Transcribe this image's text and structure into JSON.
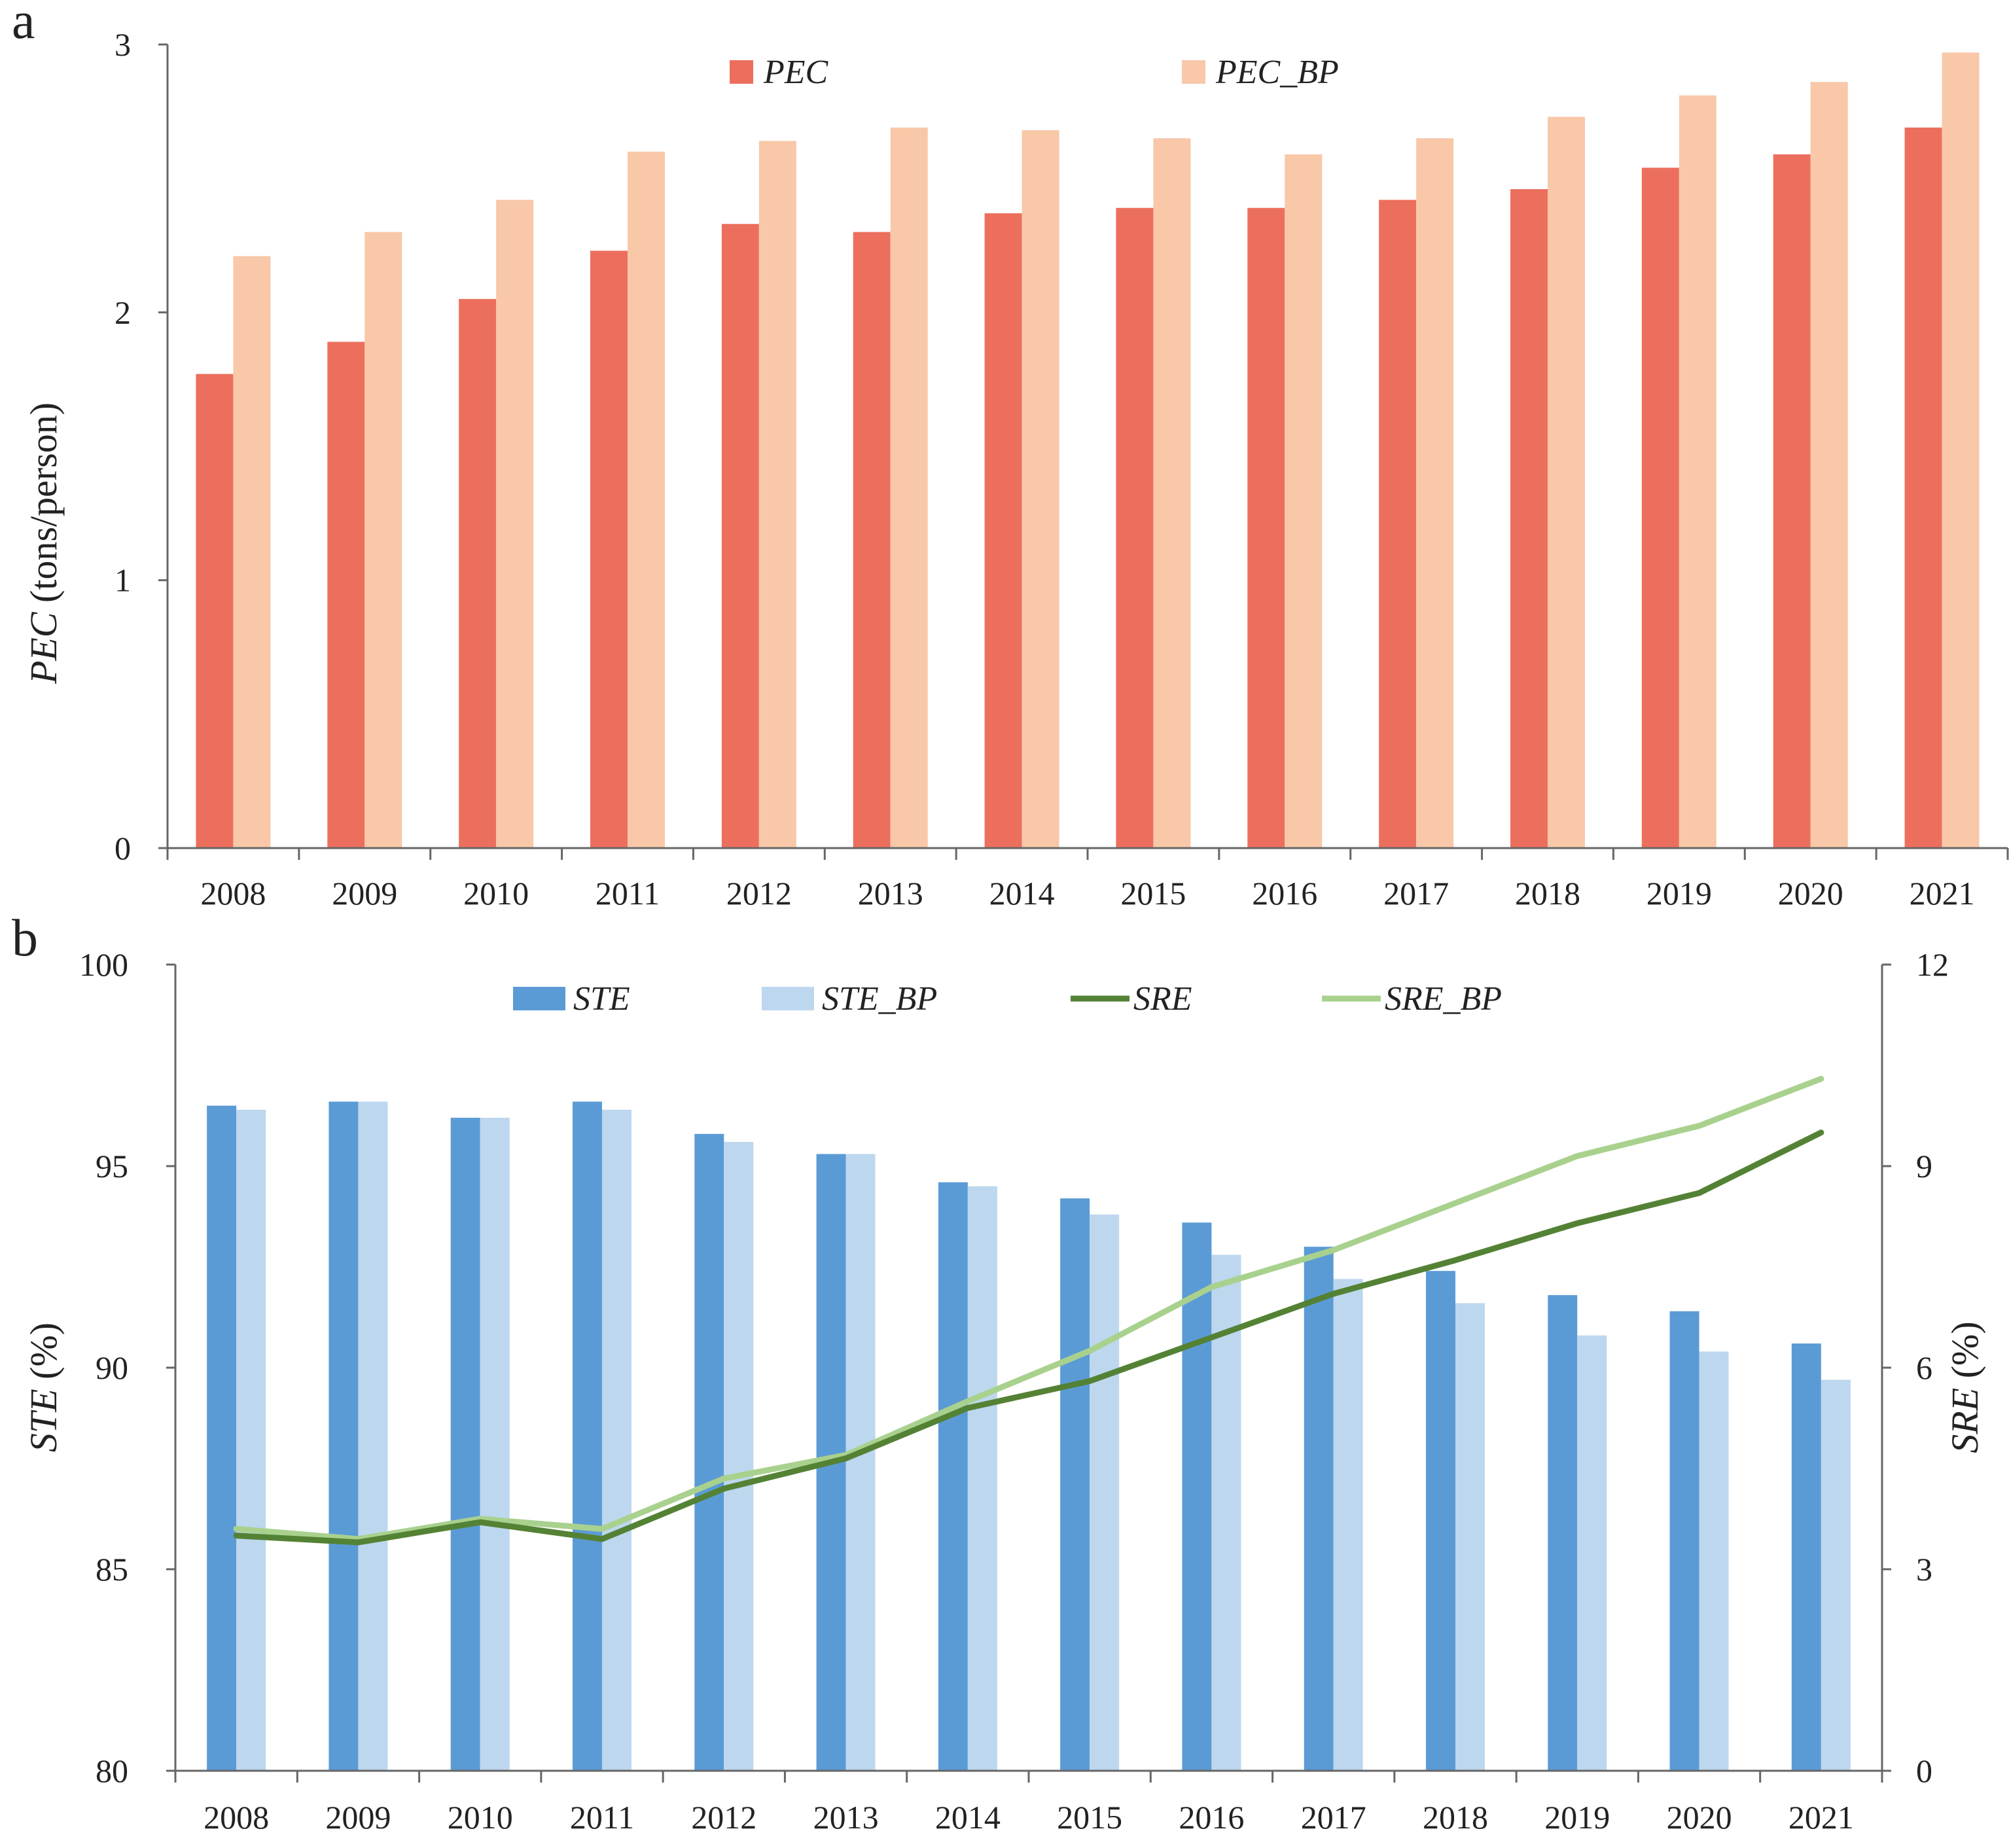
{
  "chart_data": [
    {
      "panel": "a",
      "type": "bar",
      "categories": [
        "2008",
        "2009",
        "2010",
        "2011",
        "2012",
        "2013",
        "2014",
        "2015",
        "2016",
        "2017",
        "2018",
        "2019",
        "2020",
        "2021"
      ],
      "series": [
        {
          "name": "PEC",
          "color": "#ec6f5e",
          "values": [
            1.77,
            1.89,
            2.05,
            2.23,
            2.33,
            2.3,
            2.37,
            2.39,
            2.39,
            2.42,
            2.46,
            2.54,
            2.59,
            2.69
          ]
        },
        {
          "name": "PEC_BP",
          "color": "#f8c8a9",
          "values": [
            2.21,
            2.3,
            2.42,
            2.6,
            2.64,
            2.69,
            2.68,
            2.65,
            2.59,
            2.65,
            2.73,
            2.81,
            2.86,
            2.97
          ]
        }
      ],
      "ylabel_italic": "PEC",
      "ylabel_rest": " (tons/person)",
      "ylim": [
        0,
        3
      ],
      "yticks": [
        "0",
        "1",
        "2",
        "3"
      ],
      "legend": "top"
    },
    {
      "panel": "b",
      "type": "bar+line",
      "categories": [
        "2008",
        "2009",
        "2010",
        "2011",
        "2012",
        "2013",
        "2014",
        "2015",
        "2016",
        "2017",
        "2018",
        "2019",
        "2020",
        "2021"
      ],
      "bar_series": [
        {
          "name": "STE",
          "color": "#5b9bd5",
          "values": [
            96.5,
            96.6,
            96.2,
            96.6,
            95.8,
            95.3,
            94.6,
            94.2,
            93.6,
            93.0,
            92.4,
            91.8,
            91.4,
            90.6
          ]
        },
        {
          "name": "STE_BP",
          "color": "#bdd7ee",
          "values": [
            96.4,
            96.6,
            96.2,
            96.4,
            95.6,
            95.3,
            94.5,
            93.8,
            92.8,
            92.2,
            91.6,
            90.8,
            90.4,
            89.7
          ]
        }
      ],
      "line_series": [
        {
          "name": "SRE",
          "color": "#548235",
          "values": [
            3.5,
            3.4,
            3.7,
            3.45,
            4.2,
            4.65,
            5.4,
            5.8,
            6.45,
            7.1,
            7.6,
            8.15,
            8.6,
            9.5
          ]
        },
        {
          "name": "SRE_BP",
          "color": "#a9d18e",
          "values": [
            3.6,
            3.45,
            3.75,
            3.6,
            4.35,
            4.7,
            5.5,
            6.25,
            7.2,
            7.75,
            8.45,
            9.15,
            9.6,
            10.3
          ]
        }
      ],
      "ylabel_left_italic": "STE",
      "ylabel_left_rest": " (%)",
      "ylabel_right_italic": "SRE",
      "ylabel_right_rest": " (%)",
      "ylim_left": [
        80,
        100
      ],
      "yticks_left": [
        "80",
        "85",
        "90",
        "95",
        "100"
      ],
      "ylim_right": [
        0,
        12
      ],
      "yticks_right": [
        "0",
        "3",
        "6",
        "9",
        "12"
      ],
      "legend": "top"
    }
  ]
}
